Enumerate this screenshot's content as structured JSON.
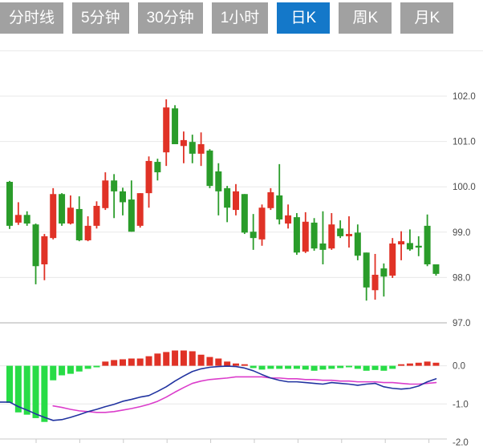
{
  "toolbar": {
    "tabs": [
      {
        "id": "time-line",
        "label": "分时线",
        "active": false
      },
      {
        "id": "5min",
        "label": "5分钟",
        "active": false
      },
      {
        "id": "30min",
        "label": "30分钟",
        "active": false
      },
      {
        "id": "1hour",
        "label": "1小时",
        "active": false
      },
      {
        "id": "daily-k",
        "label": "日K",
        "active": true
      },
      {
        "id": "weekly-k",
        "label": "周K",
        "active": false
      },
      {
        "id": "monthly-k",
        "label": "月K",
        "active": false
      }
    ]
  },
  "chart_data": {
    "type": "candlestick",
    "panels": [
      "price",
      "macd"
    ],
    "grid": true,
    "price_axis": [
      {
        "label": "102.0",
        "value": 102
      },
      {
        "label": "101.0",
        "value": 101
      },
      {
        "label": "100.0",
        "value": 100
      },
      {
        "label": "99.0",
        "value": 99
      },
      {
        "label": "98.0",
        "value": 98
      },
      {
        "label": "97.0",
        "value": 97
      }
    ],
    "macd_axis": [
      {
        "label": "0.0",
        "value": 0
      },
      {
        "label": "-1.0",
        "value": -1
      },
      {
        "label": "-2.0",
        "value": -2
      }
    ],
    "series": {
      "candles_ohlc": [
        [
          100.11,
          100.13,
          99.07,
          99.14
        ],
        [
          99.21,
          99.66,
          99.16,
          99.38
        ],
        [
          99.38,
          99.46,
          99.14,
          99.19
        ],
        [
          99.17,
          99.19,
          97.85,
          98.25
        ],
        [
          98.29,
          98.96,
          97.94,
          98.91
        ],
        [
          98.87,
          99.97,
          98.84,
          99.84
        ],
        [
          99.84,
          99.86,
          99.14,
          99.19
        ],
        [
          99.19,
          99.81,
          99.17,
          99.54
        ],
        [
          99.51,
          99.79,
          98.8,
          98.82
        ],
        [
          98.82,
          99.35,
          98.8,
          99.14
        ],
        [
          99.14,
          99.68,
          99.08,
          99.58
        ],
        [
          99.53,
          100.32,
          99.49,
          100.14
        ],
        [
          100.14,
          100.28,
          99.31,
          99.9
        ],
        [
          99.9,
          99.98,
          99.37,
          99.66
        ],
        [
          99.72,
          100.14,
          99.01,
          99.01
        ],
        [
          99.14,
          99.86,
          99.1,
          99.86
        ],
        [
          99.86,
          100.67,
          99.54,
          100.57
        ],
        [
          100.55,
          100.62,
          100.14,
          100.32
        ],
        [
          100.76,
          101.93,
          100.46,
          101.75
        ],
        [
          101.73,
          101.8,
          100.94,
          100.94
        ],
        [
          100.9,
          101.22,
          100.52,
          101.03
        ],
        [
          100.99,
          101.15,
          100.52,
          100.73
        ],
        [
          100.73,
          101.2,
          100.46,
          100.94
        ],
        [
          100.8,
          100.83,
          99.97,
          100.02
        ],
        [
          100.34,
          100.52,
          99.37,
          99.9
        ],
        [
          99.97,
          100.02,
          99.22,
          99.54
        ],
        [
          99.49,
          100.06,
          99.37,
          99.9
        ],
        [
          99.84,
          99.84,
          98.96,
          98.99
        ],
        [
          99.01,
          99.4,
          98.61,
          98.87
        ],
        [
          98.84,
          99.61,
          98.7,
          99.54
        ],
        [
          99.53,
          99.97,
          99.49,
          99.88
        ],
        [
          99.81,
          100.5,
          99.17,
          99.28
        ],
        [
          99.19,
          99.61,
          99.08,
          99.37
        ],
        [
          99.33,
          99.42,
          98.5,
          98.55
        ],
        [
          98.57,
          99.44,
          98.54,
          99.23
        ],
        [
          99.21,
          99.31,
          98.59,
          98.64
        ],
        [
          98.75,
          99.46,
          98.29,
          98.61
        ],
        [
          98.64,
          99.42,
          98.61,
          99.17
        ],
        [
          99.08,
          99.26,
          98.87,
          98.91
        ],
        [
          98.91,
          99.35,
          98.66,
          98.96
        ],
        [
          98.99,
          99.17,
          98.38,
          98.48
        ],
        [
          98.55,
          98.55,
          97.49,
          97.78
        ],
        [
          97.72,
          98.52,
          97.51,
          98.06
        ],
        [
          98.2,
          98.31,
          97.58,
          98.02
        ],
        [
          98.04,
          98.87,
          97.99,
          98.75
        ],
        [
          98.73,
          99.02,
          98.38,
          98.8
        ],
        [
          98.76,
          99.06,
          98.59,
          98.62
        ],
        [
          98.7,
          98.91,
          98.47,
          98.66
        ],
        [
          99.14,
          99.39,
          98.25,
          98.29
        ],
        [
          98.29,
          98.29,
          98.04,
          98.08
        ]
      ],
      "macd_hist": [
        -0.97,
        -1.22,
        -1.28,
        -1.37,
        -1.47,
        -0.38,
        -0.25,
        -0.21,
        -0.15,
        -0.08,
        -0.04,
        0.11,
        0.15,
        0.17,
        0.19,
        0.19,
        0.25,
        0.32,
        0.36,
        0.4,
        0.4,
        0.38,
        0.29,
        0.23,
        0.19,
        0.11,
        0.06,
        0.04,
        -0.06,
        -0.1,
        -0.08,
        -0.08,
        -0.08,
        -0.08,
        -0.1,
        -0.13,
        -0.1,
        -0.08,
        -0.06,
        -0.04,
        -0.08,
        -0.13,
        -0.11,
        -0.13,
        -0.08,
        0.04,
        0.06,
        0.08,
        0.11,
        0.08
      ],
      "dif": [
        -0.95,
        -1.07,
        -1.16,
        -1.26,
        -1.35,
        -1.43,
        -1.41,
        -1.35,
        -1.28,
        -1.2,
        -1.14,
        -1.07,
        -1.01,
        -0.93,
        -0.88,
        -0.82,
        -0.78,
        -0.67,
        -0.55,
        -0.4,
        -0.27,
        -0.15,
        -0.08,
        -0.04,
        -0.02,
        -0.01,
        -0.02,
        -0.06,
        -0.13,
        -0.23,
        -0.32,
        -0.38,
        -0.42,
        -0.42,
        -0.44,
        -0.46,
        -0.48,
        -0.44,
        -0.46,
        -0.48,
        -0.51,
        -0.48,
        -0.46,
        -0.55,
        -0.59,
        -0.61,
        -0.59,
        -0.53,
        -0.42,
        -0.34
      ],
      "dea": [
        null,
        null,
        null,
        null,
        null,
        -1.05,
        -1.09,
        -1.14,
        -1.18,
        -1.2,
        -1.22,
        -1.22,
        -1.2,
        -1.16,
        -1.12,
        -1.07,
        -1.01,
        -0.93,
        -0.82,
        -0.69,
        -0.57,
        -0.46,
        -0.4,
        -0.36,
        -0.34,
        -0.32,
        -0.29,
        -0.29,
        -0.29,
        -0.29,
        -0.32,
        -0.32,
        -0.34,
        -0.34,
        -0.36,
        -0.36,
        -0.38,
        -0.38,
        -0.4,
        -0.4,
        -0.42,
        -0.42,
        -0.42,
        -0.44,
        -0.44,
        -0.46,
        -0.48,
        -0.48,
        -0.46,
        -0.44
      ]
    },
    "colors": {
      "up": "#e03226",
      "down": "#2a9c2a",
      "hist_up": "#e03226",
      "hist_down": "#28dc46",
      "dif": "#2133a0",
      "dea": "#db3dcb",
      "grid": "#e8e8e8",
      "separator": "#c9c9c9",
      "axis_text": "#4b4b4b",
      "tab_active_bg": "#1478c9",
      "tab_bg": "#a1a1a1",
      "tab_text": "#ffffff"
    }
  }
}
